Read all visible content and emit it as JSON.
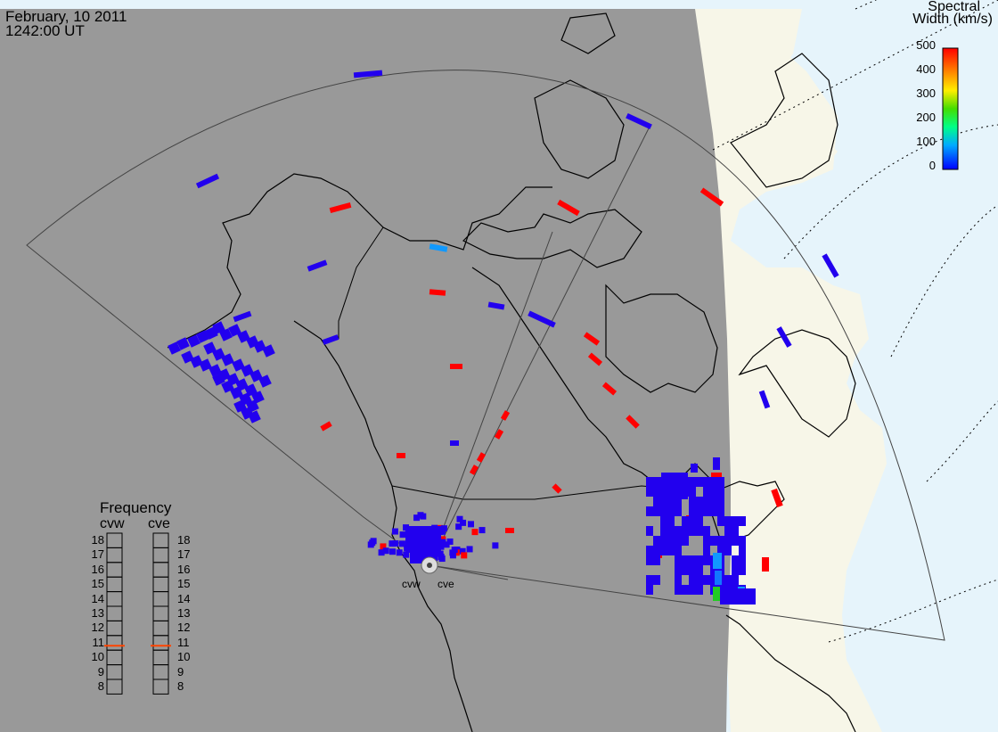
{
  "header": {
    "date": "February, 10 2011",
    "time": "1242:00 UT"
  },
  "colorbar": {
    "title_line1": "Spectral",
    "title_line2": "Width (km/s)",
    "ticks": [
      "500",
      "400",
      "300",
      "200",
      "100",
      "0"
    ],
    "colors": [
      "#0000ff",
      "#00aaff",
      "#00ff88",
      "#44dd00",
      "#ffee00",
      "#ff8800",
      "#ff0000"
    ]
  },
  "frequency_panel": {
    "title": "Frequency",
    "radars": [
      "cvw",
      "cve"
    ],
    "levels": [
      "18",
      "17",
      "16",
      "15",
      "14",
      "13",
      "12",
      "11",
      "10",
      "9",
      "8"
    ],
    "cvw_value": 10.8,
    "cve_value": 10.8,
    "marker_color": "#ff4400"
  },
  "sites": {
    "west": "cvw",
    "east": "cve"
  },
  "colors": {
    "night": "#999999",
    "day_land": "#f7f6e8",
    "day_sea": "#e6f4fb",
    "scatter_low": "#2200ee",
    "scatter_high": "#ff0000"
  }
}
